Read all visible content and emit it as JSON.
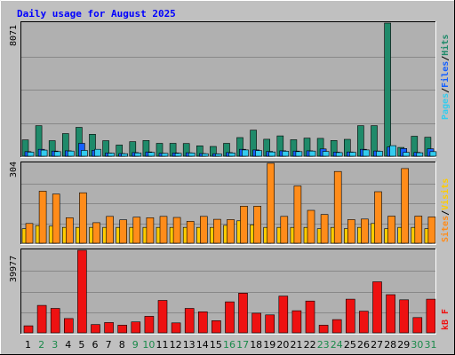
{
  "chart_data": {
    "type": "bar",
    "title": "Daily usage for August 2025",
    "days": [
      "1",
      "2",
      "3",
      "4",
      "5",
      "6",
      "7",
      "8",
      "9",
      "10",
      "11",
      "12",
      "13",
      "14",
      "15",
      "16",
      "17",
      "18",
      "19",
      "20",
      "21",
      "22",
      "23",
      "24",
      "25",
      "26",
      "27",
      "28",
      "29",
      "30",
      "31"
    ],
    "weekend_days": [
      2,
      3,
      9,
      10,
      16,
      17,
      23,
      24,
      30,
      31
    ],
    "panels": {
      "hits_files_pages": {
        "ymax_label": "8071",
        "ymax": 8071,
        "axis_labels": {
          "pages": "Pages",
          "files": "Files",
          "hits": "Hits"
        },
        "series": [
          {
            "name": "Hits",
            "color": "#1f8a6a",
            "values": [
              990,
              1850,
              940,
              1370,
              1750,
              1330,
              940,
              680,
              880,
              950,
              780,
              780,
              770,
              630,
              590,
              780,
              1130,
              1580,
              1030,
              1230,
              1000,
              1100,
              1080,
              950,
              1020,
              1850,
              1850,
              8071,
              530,
              1210,
              1150
            ]
          },
          {
            "name": "Files",
            "color": "#1560ff",
            "values": [
              280,
              420,
              310,
              330,
              780,
              360,
              200,
              160,
              220,
              260,
              180,
              200,
              210,
              160,
              150,
              220,
              420,
              380,
              290,
              330,
              310,
              330,
              440,
              250,
              260,
              420,
              320,
              560,
              470,
              230,
              450
            ]
          },
          {
            "name": "Pages",
            "color": "#33ccee",
            "values": [
              250,
              370,
              280,
              310,
              350,
              420,
              190,
              150,
              200,
              230,
              170,
              180,
              200,
              150,
              140,
              200,
              380,
              340,
              260,
              300,
              280,
              310,
              290,
              220,
              240,
              380,
              300,
              640,
              230,
              210,
              280
            ]
          }
        ]
      },
      "visits_sites": {
        "ymax_label": "304",
        "ymax": 304,
        "axis_labels": {
          "sites": "Sites",
          "visits": "Visits"
        },
        "series": [
          {
            "name": "Visits",
            "color": "#ffcc00",
            "values": [
              55,
              67,
              65,
              60,
              60,
              60,
              60,
              60,
              60,
              60,
              60,
              60,
              60,
              60,
              60,
              68,
              85,
              70,
              60,
              60,
              60,
              60,
              55,
              60,
              55,
              60,
              75,
              55,
              60,
              60,
              55
            ]
          },
          {
            "name": "Sites",
            "color": "#ff8c1a",
            "values": [
              75,
              198,
              187,
              97,
              192,
              78,
              102,
              89,
              99,
              97,
              102,
              98,
              83,
              102,
              91,
              90,
              141,
              141,
              304,
              102,
              218,
              125,
              109,
              273,
              90,
              92,
              196,
              103,
              284,
              103,
              100
            ]
          }
        ]
      },
      "kbytes": {
        "ymax_label": "39977",
        "ymax": 39977,
        "axis_label": "kB F",
        "series": [
          {
            "name": "kB F",
            "color": "#ee1111",
            "values": [
              3400,
              13300,
              11800,
              6900,
              39977,
              4000,
              5000,
              3700,
              5300,
              8000,
              15700,
              4800,
              11800,
              10200,
              5900,
              15000,
              19200,
              9500,
              8700,
              17800,
              10700,
              15400,
              3700,
              6400,
              16300,
              10500,
              24700,
              18500,
              16000,
              7400,
              16300
            ]
          }
        ]
      }
    }
  }
}
